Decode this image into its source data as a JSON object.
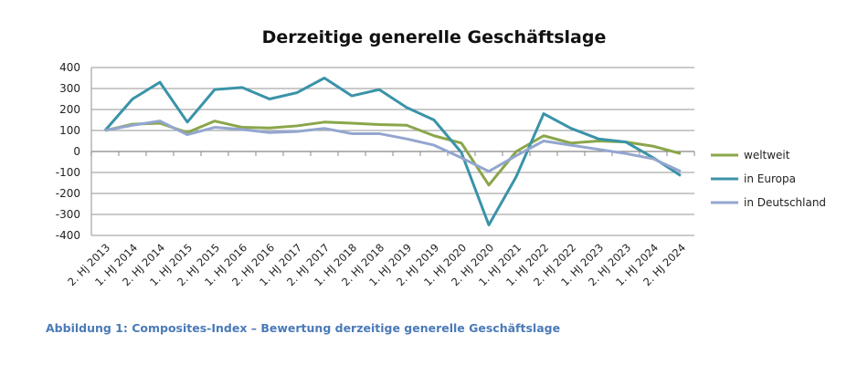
{
  "chart_data": {
    "type": "line",
    "title": "Derzeitige generelle Geschäftslage",
    "caption": "Abbildung 1: Composites-Index – Bewertung derzeitige generelle Geschäftslage",
    "categories": [
      "2. Hj 2013",
      "1. HJ 2014",
      "2. HJ 2014",
      "1. HJ 2015",
      "2. HJ 2015",
      "1. HJ 2016",
      "2. HJ 2016",
      "1. HJ 2017",
      "2. HJ 2017",
      "1. HJ 2018",
      "2. HJ 2018",
      "1. HJ 2019",
      "2. HJ 2019",
      "1. HJ 2020",
      "2. HJ 2020",
      "1. HJ 2021",
      "1. HJ 2022",
      "2. HJ 2022",
      "1. HJ 2023",
      "2. HJ 2023",
      "1. HJ 2024",
      "2. HJ 2024"
    ],
    "ylim": [
      -400,
      400
    ],
    "yticks": [
      "400",
      "300",
      "200",
      "100",
      "0",
      "-100",
      "-200",
      "-300",
      "-400"
    ],
    "grid": true,
    "legend": "right",
    "series": [
      {
        "name": "weltweit",
        "color": "#8aa64a",
        "values": [
          100,
          130,
          135,
          90,
          145,
          115,
          112,
          122,
          140,
          135,
          128,
          125,
          75,
          40,
          -160,
          0,
          75,
          40,
          50,
          45,
          25,
          -10
        ]
      },
      {
        "name": "in Europa",
        "color": "#3a93a8",
        "values": [
          100,
          250,
          330,
          140,
          295,
          305,
          250,
          280,
          350,
          265,
          295,
          210,
          150,
          -5,
          -350,
          -120,
          180,
          110,
          60,
          45,
          -30,
          -115
        ]
      },
      {
        "name": "in Deutschland",
        "color": "#93a6cf",
        "values": [
          100,
          125,
          145,
          80,
          115,
          105,
          90,
          95,
          110,
          85,
          85,
          60,
          30,
          -30,
          -95,
          -20,
          50,
          30,
          10,
          -10,
          -35,
          -95
        ]
      }
    ]
  }
}
